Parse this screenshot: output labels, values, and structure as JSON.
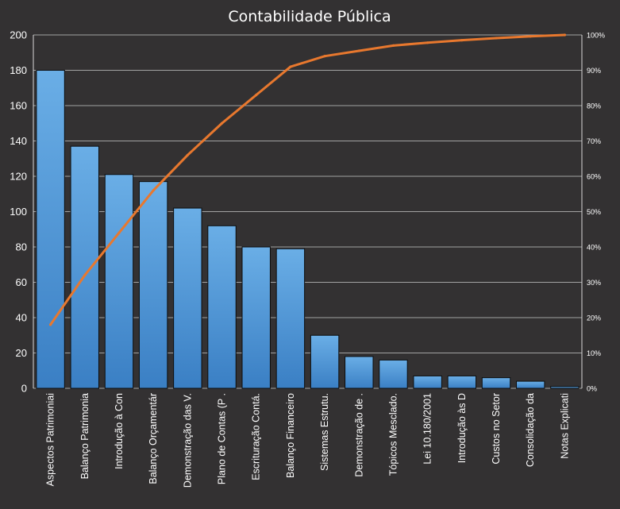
{
  "chart_data": {
    "type": "bar",
    "title": "Contabilidade Pública",
    "categories": [
      "Aspectos Patrimoniai",
      "Balanço Patrimonia",
      "Introdução  à Con",
      "Balanço Orçamentár",
      "Demonstração das V.",
      "Plano de Contas (P .",
      "Escrituração Contá.",
      "Balanço Financeiro",
      "Sistemas Estrutu.",
      "Demonstração de  .",
      "Tópicos Mesclado.",
      "Lei 10.180/2001",
      "Introdução  às D",
      "Custos no Setor",
      "Consolidação da",
      "Notas Explicati"
    ],
    "series": [
      {
        "type": "bar",
        "values": [
          180,
          137,
          121,
          117,
          102,
          92,
          80,
          79,
          30,
          18,
          16,
          7,
          7,
          6,
          4,
          1
        ],
        "color": "#5aa0e0"
      },
      {
        "type": "line",
        "axis": "right",
        "values": [
          0.18,
          0.32,
          0.44,
          0.56,
          0.66,
          0.75,
          0.83,
          0.91,
          0.94,
          0.955,
          0.97,
          0.978,
          0.985,
          0.991,
          0.996,
          1.0
        ],
        "color": "#e8782e"
      }
    ],
    "ylim": [
      0,
      200
    ],
    "yticks": [
      "0",
      "20",
      "40",
      "60",
      "80",
      "100",
      "120",
      "140",
      "160",
      "180",
      "200"
    ],
    "y2lim": [
      0,
      1
    ],
    "y2ticks": [
      "0%",
      "10%",
      "20%",
      "30%",
      "40%",
      "50%",
      "60%",
      "70%",
      "80%",
      "90%",
      "100%"
    ],
    "grid": true,
    "colors": {
      "background": "#333132",
      "grid": "#d8d8d8",
      "bar_top": "#6aaee6",
      "bar_bottom": "#3a7fc4",
      "line": "#e8782e",
      "text": "#ffffff"
    }
  }
}
